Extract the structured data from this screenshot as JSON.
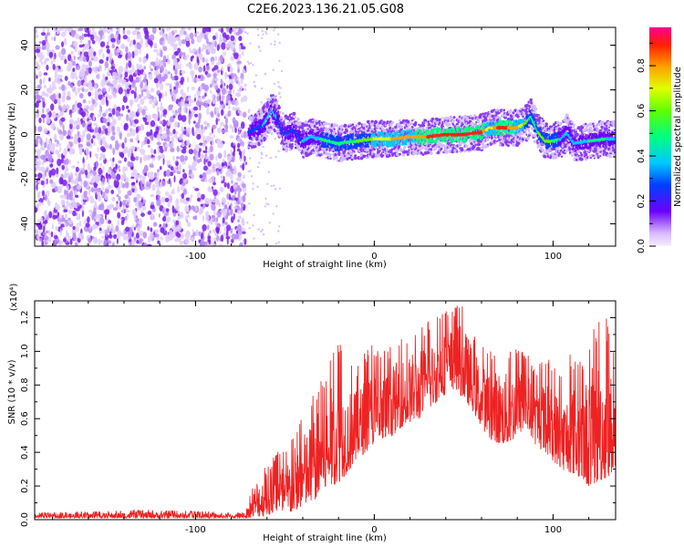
{
  "title": "C2E6.2023.136.21.05.G08",
  "colors": {
    "snr_line": "#ee2222",
    "axis": "#000000",
    "background": "#ffffff"
  },
  "chart_data": [
    {
      "type": "heatmap",
      "name": "spectrogram",
      "xlabel": "Height of straight line (km)",
      "ylabel": "Frequency (Hz)",
      "xlim": [
        -190,
        135
      ],
      "ylim": [
        -50,
        48
      ],
      "xticks": [
        -100,
        0,
        100
      ],
      "xtick_labels": [
        "-100",
        "0",
        "100"
      ],
      "yticks": [
        -40,
        -20,
        0,
        20,
        40
      ],
      "ytick_labels": [
        "-40",
        "-20",
        "0",
        "20",
        "40"
      ],
      "noise_region": [
        -190,
        -72
      ],
      "ridge": {
        "x": [
          -70,
          -62,
          -57,
          -54,
          -50,
          -45,
          -40,
          -35,
          -30,
          -20,
          -10,
          0,
          10,
          20,
          30,
          40,
          50,
          60,
          65,
          70,
          80,
          85,
          88,
          92,
          96,
          100,
          105,
          108,
          112,
          120,
          130,
          135
        ],
        "y": [
          1,
          4,
          11,
          7,
          0,
          2,
          -3,
          -1,
          -2,
          -4,
          -3,
          -2,
          -2,
          -1,
          -1,
          0,
          0,
          1,
          3,
          3,
          3,
          5,
          8,
          1,
          -3,
          -3,
          -2,
          1,
          -4,
          -3,
          -2,
          -2
        ],
        "amplitude": [
          0.25,
          0.35,
          0.4,
          0.35,
          0.3,
          0.3,
          0.35,
          0.4,
          0.45,
          0.5,
          0.55,
          0.65,
          0.75,
          0.8,
          0.85,
          0.9,
          0.95,
          0.9,
          0.65,
          0.9,
          0.8,
          0.6,
          0.5,
          0.55,
          0.6,
          0.55,
          0.4,
          0.35,
          0.4,
          0.45,
          0.45,
          0.4
        ]
      },
      "colorbar": {
        "label": "Normalized spectral amplitude",
        "range": [
          0,
          0.97
        ],
        "ticks": [
          0.0,
          0.2,
          0.4,
          0.6,
          0.8
        ],
        "tick_labels": [
          "0.0",
          "0.2",
          "0.4",
          "0.6",
          "0.8"
        ]
      }
    },
    {
      "type": "line",
      "name": "snr",
      "xlabel": "Height of straight line (km)",
      "ylabel": "SNR (10 * v/v)",
      "y_multiplier": "(x10⁴)",
      "xlim": [
        -190,
        135
      ],
      "ylim": [
        0,
        1.3
      ],
      "xticks": [
        -100,
        0,
        100
      ],
      "xtick_labels": [
        "-100",
        "0",
        "100"
      ],
      "yticks": [
        0.0,
        0.2,
        0.4,
        0.6,
        0.8,
        1.0,
        1.2
      ],
      "ytick_labels": [
        "0.0",
        "0.2",
        "0.4",
        "0.6",
        "0.8",
        "1.0",
        "1.2"
      ],
      "series": [
        {
          "envelope_x": [
            -190,
            -150,
            -130,
            -72,
            -65,
            -60,
            -55,
            -50,
            -45,
            -40,
            -35,
            -30,
            -25,
            -20,
            -15,
            -10,
            -5,
            0,
            5,
            10,
            15,
            20,
            25,
            30,
            35,
            40,
            45,
            50,
            55,
            60,
            65,
            70,
            75,
            80,
            85,
            90,
            95,
            100,
            105,
            110,
            115,
            120,
            125,
            130,
            135
          ],
          "envelope_low": [
            0.01,
            0.01,
            0.01,
            0.01,
            0.02,
            0.02,
            0.05,
            0.02,
            0.05,
            0.08,
            0.1,
            0.15,
            0.2,
            0.22,
            0.28,
            0.35,
            0.4,
            0.45,
            0.45,
            0.5,
            0.55,
            0.58,
            0.6,
            0.65,
            0.7,
            0.75,
            0.78,
            0.72,
            0.65,
            0.55,
            0.48,
            0.45,
            0.45,
            0.5,
            0.55,
            0.45,
            0.4,
            0.35,
            0.3,
            0.28,
            0.25,
            0.2,
            0.22,
            0.25,
            0.3
          ],
          "envelope_high": [
            0.04,
            0.05,
            0.06,
            0.04,
            0.35,
            0.3,
            0.4,
            0.45,
            0.55,
            0.65,
            0.75,
            0.85,
            0.95,
            1.1,
            0.95,
            0.9,
            1.0,
            1.05,
            1.0,
            1.05,
            1.1,
            1.12,
            1.15,
            1.18,
            1.2,
            1.25,
            1.28,
            1.3,
            1.15,
            1.05,
            1.0,
            1.05,
            1.0,
            1.05,
            1.0,
            0.9,
            0.95,
            0.95,
            0.85,
            1.0,
            0.95,
            1.1,
            1.2,
            1.2,
            0.95
          ]
        }
      ]
    }
  ]
}
